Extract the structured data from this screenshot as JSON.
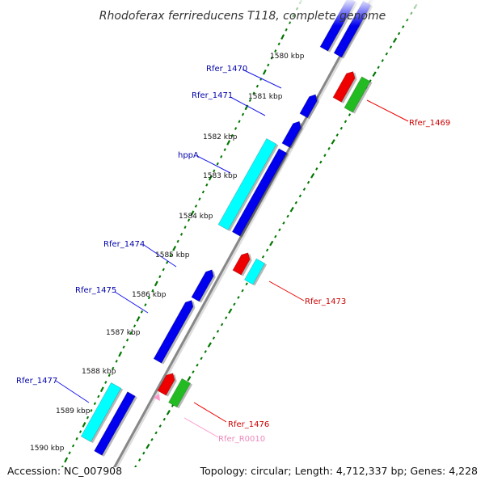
{
  "title": "Rhodoferax ferrireducens T118, complete genome",
  "accession": "Accession: NC_007908",
  "summary": "Topology: circular; Length: 4,712,337 bp; Genes: 4,228",
  "colors": {
    "cds": "#0000ee",
    "cds_shadow": "#000088",
    "highlight_cyan": "#00ffff",
    "green": "#22bb22",
    "red": "#ee0000",
    "trna": "#ff99cc",
    "ruler_tick": "#007700",
    "backbone": "#888888",
    "label_forward": "#0000aa",
    "label_reverse": "#cc0000",
    "label_rna": "#ee88bb"
  },
  "scale_labels": [
    {
      "kbp": 1580,
      "text": "1580 kbp"
    },
    {
      "kbp": 1581,
      "text": "1581 kbp"
    },
    {
      "kbp": 1582,
      "text": "1582 kbp"
    },
    {
      "kbp": 1583,
      "text": "1583 kbp"
    },
    {
      "kbp": 1584,
      "text": "1584 kbp"
    },
    {
      "kbp": 1585,
      "text": "1585 kbp"
    },
    {
      "kbp": 1586,
      "text": "1586 kbp"
    },
    {
      "kbp": 1587,
      "text": "1587 kbp"
    },
    {
      "kbp": 1588,
      "text": "1588 kbp"
    },
    {
      "kbp": 1589,
      "text": "1589 kbp"
    },
    {
      "kbp": 1590,
      "text": "1590 kbp"
    }
  ],
  "gene_labels": [
    {
      "name": "Rfer_1470",
      "strand": "forward"
    },
    {
      "name": "Rfer_1471",
      "strand": "forward"
    },
    {
      "name": "hppA",
      "strand": "forward"
    },
    {
      "name": "Rfer_1474",
      "strand": "forward"
    },
    {
      "name": "Rfer_1475",
      "strand": "forward"
    },
    {
      "name": "Rfer_1477",
      "strand": "forward"
    },
    {
      "name": "Rfer_1469",
      "strand": "reverse"
    },
    {
      "name": "Rfer_1473",
      "strand": "reverse"
    },
    {
      "name": "Rfer_1476",
      "strand": "reverse"
    },
    {
      "name": "Rfer_R0010",
      "strand": "rna"
    }
  ]
}
